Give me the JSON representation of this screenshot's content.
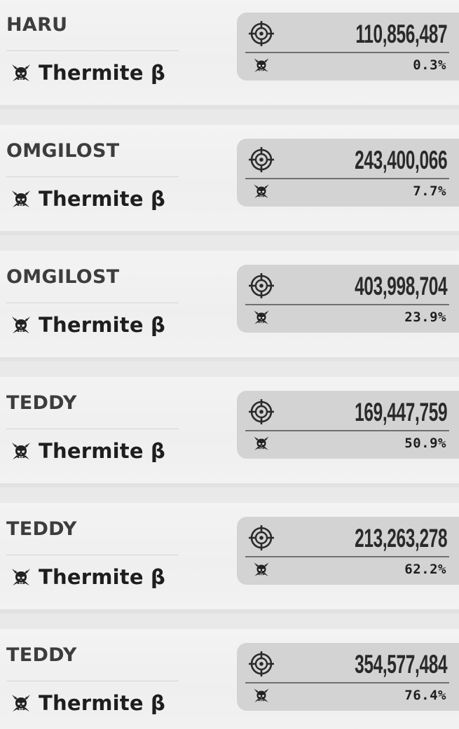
{
  "entries": [
    {
      "player": "HARU",
      "character": "Thermite β",
      "score": "110,856,487",
      "percentile": "0.3%"
    },
    {
      "player": "OMGILOST",
      "character": "Thermite β",
      "score": "243,400,066",
      "percentile": "7.7%"
    },
    {
      "player": "OMGILOST",
      "character": "Thermite β",
      "score": "403,998,704",
      "percentile": "23.9%"
    },
    {
      "player": "TEDDY",
      "character": "Thermite β",
      "score": "169,447,759",
      "percentile": "50.9%"
    },
    {
      "player": "TEDDY",
      "character": "Thermite β",
      "score": "213,263,278",
      "percentile": "62.2%"
    },
    {
      "player": "TEDDY",
      "character": "Thermite β",
      "score": "354,577,484",
      "percentile": "76.4%"
    }
  ],
  "icons": {
    "character": "thermite-skull-icon",
    "score": "crosshair-target-icon",
    "percentile": "thermite-skull-icon"
  },
  "colors": {
    "card_bg": "#f0f0f0",
    "stat_box_bg": "#d3d3d3",
    "text_dark": "#1e1e1e",
    "name_text": "#3d3d3d"
  }
}
